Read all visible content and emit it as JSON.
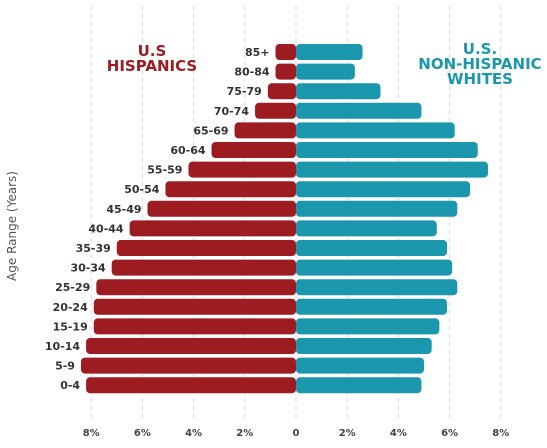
{
  "chart_data": {
    "type": "bar",
    "orientation": "horizontal-butterfly",
    "ylabel": "Age Range (Years)",
    "xlabel": "",
    "xlim": [
      -10,
      10
    ],
    "xticks": [
      -8,
      -6,
      -4,
      -2,
      0,
      2,
      4,
      6,
      8
    ],
    "xtick_labels": [
      "8%",
      "6%",
      "4%",
      "2%",
      "0",
      "2%",
      "4%",
      "6%",
      "8%"
    ],
    "grid": true,
    "categories": [
      "85+",
      "80-84",
      "75-79",
      "70-74",
      "65-69",
      "60-64",
      "55-59",
      "50-54",
      "45-49",
      "40-44",
      "35-39",
      "30-34",
      "25-29",
      "20-24",
      "15-19",
      "10-14",
      "5-9",
      "0-4"
    ],
    "series": [
      {
        "name_lines": [
          "U.S",
          "HISPANICS"
        ],
        "side": "left",
        "color": "#9c1c22",
        "values": [
          0.8,
          0.8,
          1.1,
          1.6,
          2.4,
          3.3,
          4.2,
          5.1,
          5.8,
          6.5,
          7.0,
          7.2,
          7.8,
          7.9,
          7.9,
          8.2,
          8.4,
          8.2
        ]
      },
      {
        "name_lines": [
          "U.S.",
          "NON-HISPANIC",
          "WHITES"
        ],
        "side": "right",
        "color": "#1a96ad",
        "values": [
          2.6,
          2.3,
          3.3,
          4.9,
          6.2,
          7.1,
          7.5,
          6.8,
          6.3,
          5.5,
          5.9,
          6.1,
          6.3,
          5.9,
          5.6,
          5.3,
          5.0,
          4.9
        ]
      }
    ]
  }
}
